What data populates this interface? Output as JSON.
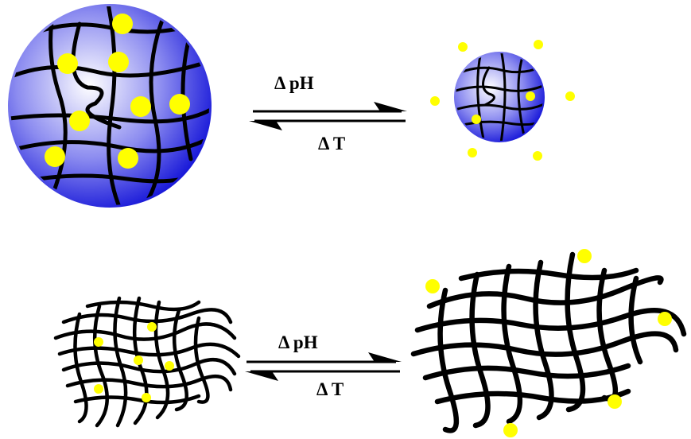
{
  "top": {
    "forward": "Δ pH",
    "reverse": "Δ T"
  },
  "bottom": {
    "forward": "Δ pH",
    "reverse": "Δ T"
  }
}
